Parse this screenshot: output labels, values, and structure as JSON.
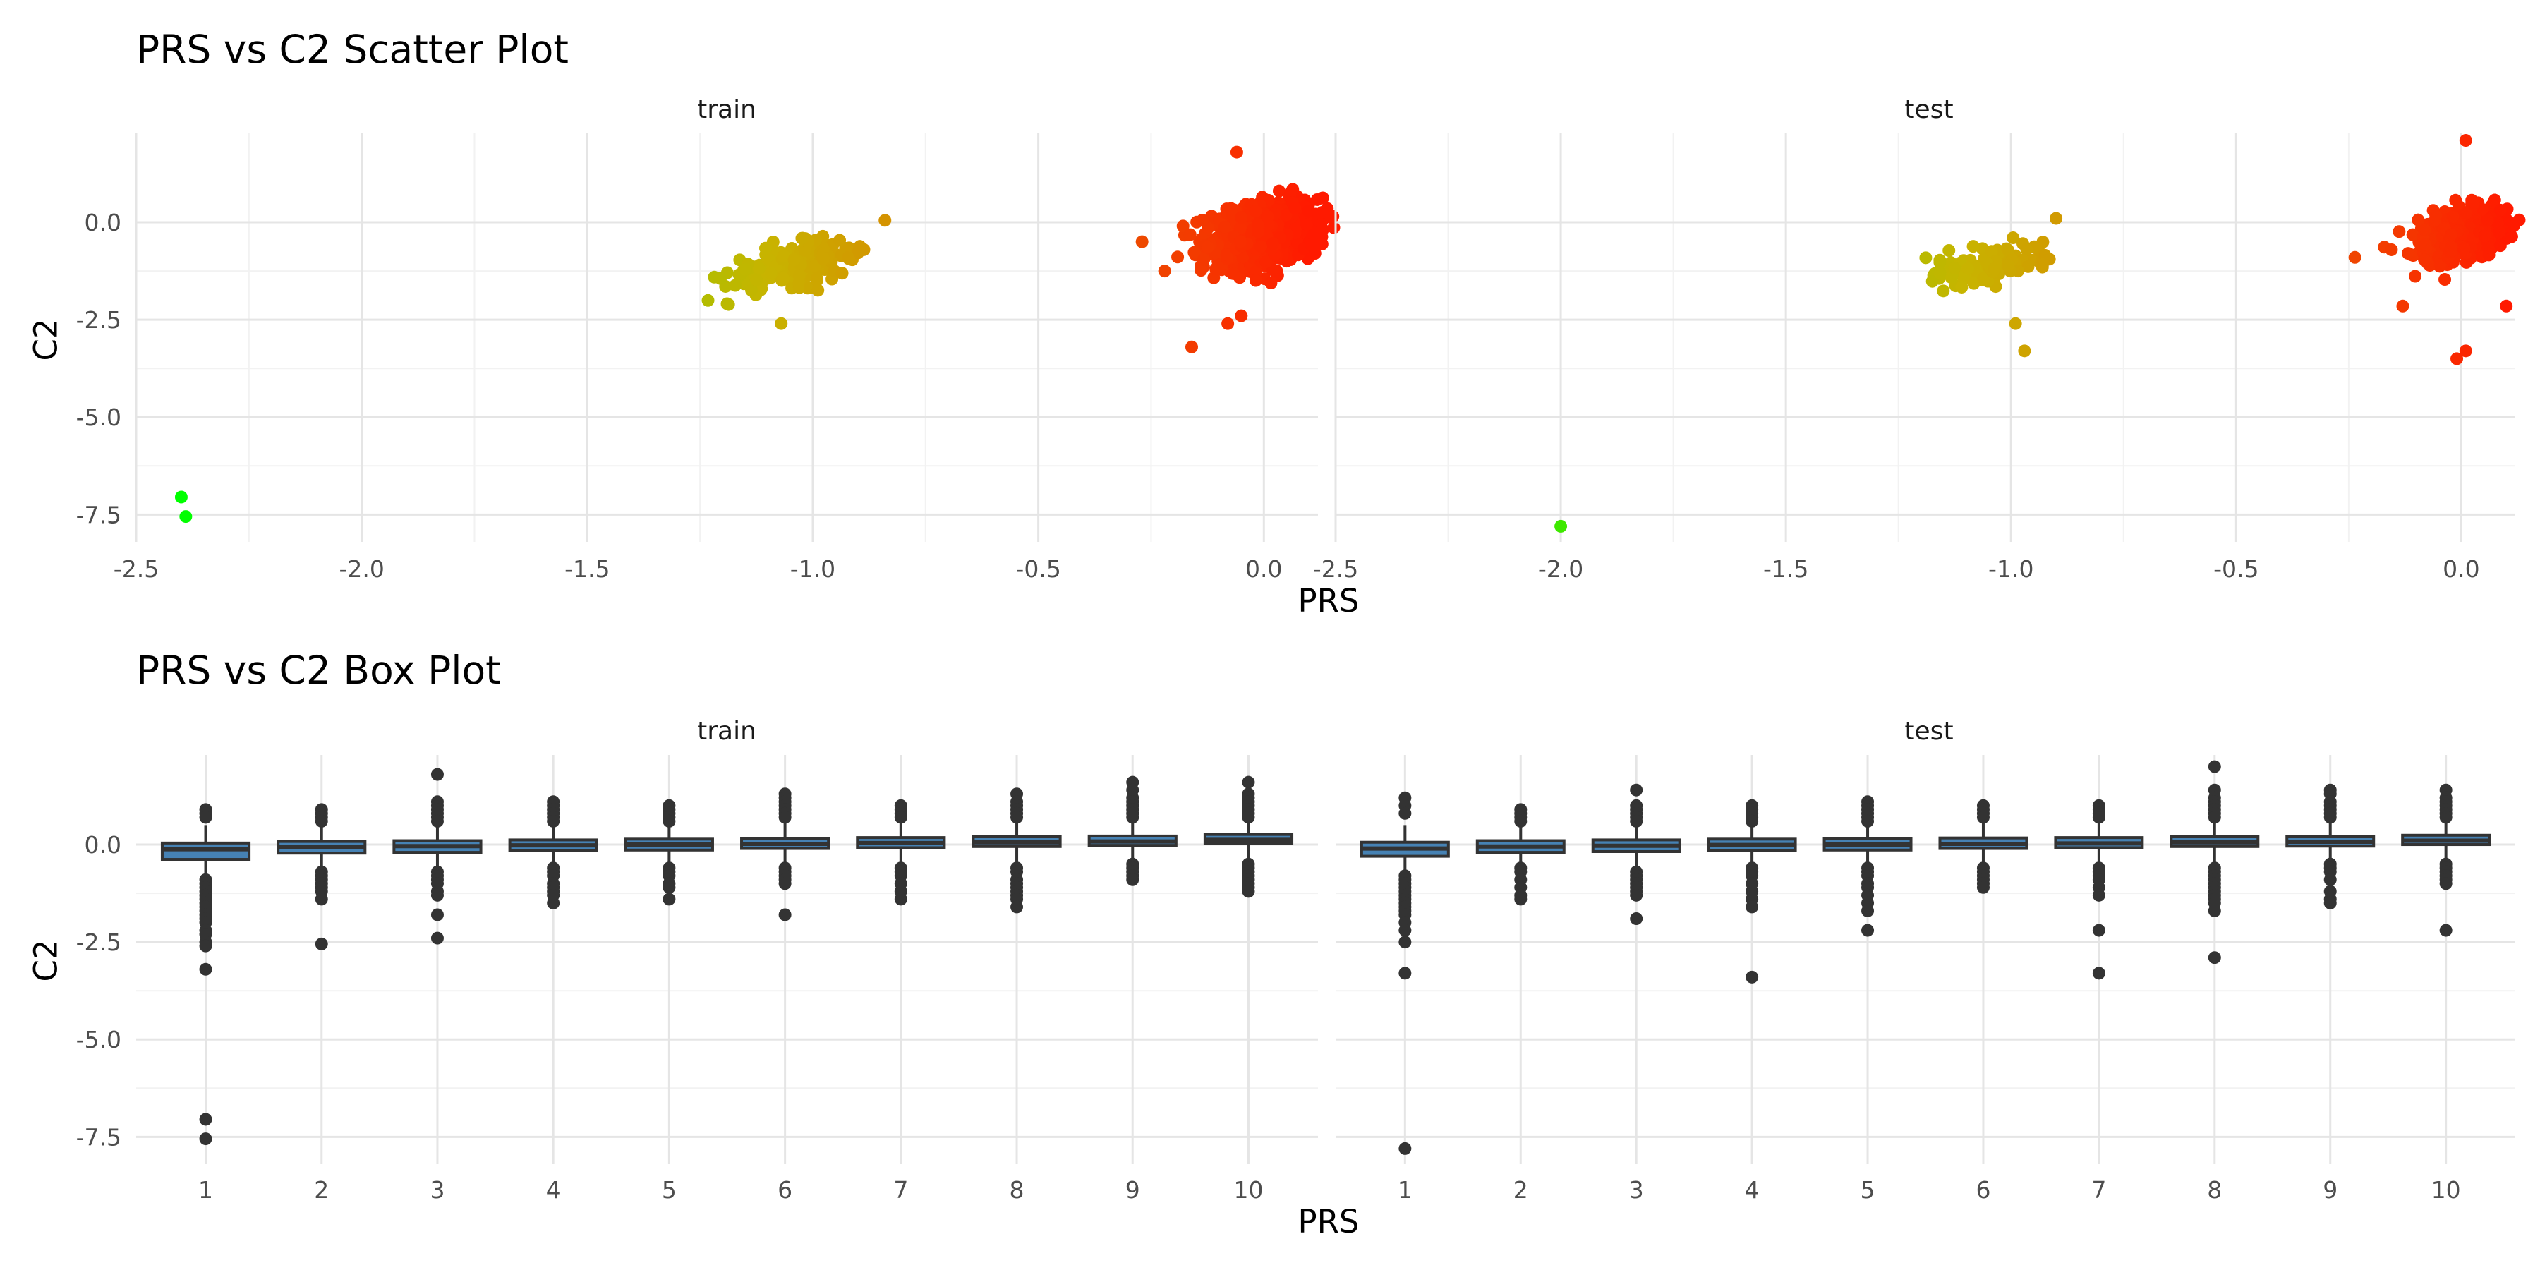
{
  "chart_data": [
    {
      "type": "scatter",
      "title": "PRS vs C2 Scatter Plot",
      "xlabel": "PRS",
      "ylabel": "C2",
      "facets": [
        "train",
        "test"
      ],
      "xlim": [
        -2.5,
        0.12
      ],
      "ylim": [
        -8.2,
        2.3
      ],
      "xticks": [
        -2.5,
        -2.0,
        -1.5,
        -1.0,
        -0.5,
        0.0
      ],
      "xtick_labels": [
        "-2.5",
        "-2.0",
        "-1.5",
        "-1.0",
        "-0.5",
        "0.0"
      ],
      "yticks": [
        0.0,
        -2.5,
        -5.0,
        -7.5
      ],
      "ytick_labels": [
        "0.0",
        "-2.5",
        "-5.0",
        "-7.5"
      ],
      "grid": true,
      "legend": "none",
      "color_scale": {
        "low": "#00ff00",
        "mid": "#c8b400",
        "high": "#ff1a00"
      },
      "clusters": [
        {
          "facet": "train",
          "center_x": -1.05,
          "center_y": -1.1,
          "spread_x": 0.07,
          "spread_y": 0.45,
          "count": 220
        },
        {
          "facet": "train",
          "center_x": 0.0,
          "center_y": -0.3,
          "spread_x": 0.06,
          "spread_y": 0.7,
          "count": 900
        },
        {
          "facet": "test",
          "center_x": -1.05,
          "center_y": -1.1,
          "spread_x": 0.06,
          "spread_y": 0.4,
          "count": 110
        },
        {
          "facet": "test",
          "center_x": 0.0,
          "center_y": -0.3,
          "spread_x": 0.05,
          "spread_y": 0.6,
          "count": 450
        }
      ],
      "points": [
        {
          "facet": "train",
          "x": -2.4,
          "y": -7.05
        },
        {
          "facet": "train",
          "x": -2.39,
          "y": -7.55
        },
        {
          "facet": "train",
          "x": -0.06,
          "y": 1.8
        },
        {
          "facet": "train",
          "x": -0.16,
          "y": -3.2
        },
        {
          "facet": "train",
          "x": -0.05,
          "y": -2.4
        },
        {
          "facet": "train",
          "x": -0.08,
          "y": -2.6
        },
        {
          "facet": "train",
          "x": -0.27,
          "y": -0.5
        },
        {
          "facet": "train",
          "x": -0.22,
          "y": -1.25
        },
        {
          "facet": "train",
          "x": -1.07,
          "y": -2.6
        },
        {
          "facet": "train",
          "x": -0.84,
          "y": 0.05
        },
        {
          "facet": "test",
          "x": -2.0,
          "y": -7.8
        },
        {
          "facet": "test",
          "x": 0.01,
          "y": 2.1
        },
        {
          "facet": "test",
          "x": -0.01,
          "y": -3.5
        },
        {
          "facet": "test",
          "x": 0.01,
          "y": -3.3
        },
        {
          "facet": "test",
          "x": 0.1,
          "y": -2.15
        },
        {
          "facet": "test",
          "x": -0.13,
          "y": -2.15
        },
        {
          "facet": "test",
          "x": -0.97,
          "y": -3.3
        },
        {
          "facet": "test",
          "x": -0.99,
          "y": -2.6
        },
        {
          "facet": "test",
          "x": -0.9,
          "y": 0.1
        }
      ]
    },
    {
      "type": "box",
      "title": "PRS vs C2 Box Plot",
      "xlabel": "PRS",
      "ylabel": "C2",
      "facets": [
        "train",
        "test"
      ],
      "categories": [
        "1",
        "2",
        "3",
        "4",
        "5",
        "6",
        "7",
        "8",
        "9",
        "10"
      ],
      "ylim": [
        -8.2,
        2.3
      ],
      "yticks": [
        0.0,
        -2.5,
        -5.0,
        -7.5
      ],
      "ytick_labels": [
        "0.0",
        "-2.5",
        "-5.0",
        "-7.5"
      ],
      "grid": true,
      "series": [
        {
          "facet": "train",
          "boxes": [
            {
              "q1": -0.38,
              "median": -0.12,
              "q3": 0.04,
              "whisker_low": -0.8,
              "whisker_high": 0.5,
              "outliers": [
                0.9,
                0.8,
                0.7,
                -0.9,
                -1.0,
                -1.1,
                -1.2,
                -1.3,
                -1.4,
                -1.5,
                -1.6,
                -1.7,
                -1.8,
                -1.9,
                -2.0,
                -2.2,
                -2.3,
                -2.5,
                -2.6,
                -3.2,
                -7.05,
                -7.55
              ]
            },
            {
              "q1": -0.22,
              "median": -0.06,
              "q3": 0.08,
              "whisker_low": -0.6,
              "whisker_high": 0.45,
              "outliers": [
                0.9,
                0.8,
                0.7,
                0.6,
                -0.7,
                -0.8,
                -0.9,
                -1.0,
                -1.1,
                -1.2,
                -1.4,
                -2.55
              ]
            },
            {
              "q1": -0.2,
              "median": -0.04,
              "q3": 0.1,
              "whisker_low": -0.6,
              "whisker_high": 0.5,
              "outliers": [
                1.8,
                1.1,
                1.0,
                0.9,
                0.8,
                0.7,
                0.6,
                -0.7,
                -0.8,
                -0.9,
                -1.0,
                -1.2,
                -1.3,
                -1.8,
                -2.4
              ]
            },
            {
              "q1": -0.16,
              "median": -0.02,
              "q3": 0.12,
              "whisker_low": -0.55,
              "whisker_high": 0.55,
              "outliers": [
                1.1,
                1.0,
                0.9,
                0.8,
                0.7,
                0.6,
                -0.6,
                -0.7,
                -0.8,
                -1.0,
                -1.1,
                -1.2,
                -1.3,
                -1.5
              ]
            },
            {
              "q1": -0.14,
              "median": 0.0,
              "q3": 0.14,
              "whisker_low": -0.55,
              "whisker_high": 0.55,
              "outliers": [
                1.0,
                0.9,
                0.8,
                0.7,
                0.6,
                -0.6,
                -0.7,
                -0.8,
                -1.0,
                -1.1,
                -1.4
              ]
            },
            {
              "q1": -0.1,
              "median": 0.02,
              "q3": 0.16,
              "whisker_low": -0.5,
              "whisker_high": 0.6,
              "outliers": [
                1.3,
                1.2,
                1.1,
                1.0,
                0.9,
                0.8,
                0.7,
                -0.6,
                -0.7,
                -0.8,
                -0.9,
                -1.0,
                -1.8
              ]
            },
            {
              "q1": -0.08,
              "median": 0.04,
              "q3": 0.18,
              "whisker_low": -0.5,
              "whisker_high": 0.6,
              "outliers": [
                1.0,
                0.9,
                0.8,
                0.7,
                -0.6,
                -0.7,
                -0.8,
                -1.0,
                -1.2,
                -1.4
              ]
            },
            {
              "q1": -0.05,
              "median": 0.06,
              "q3": 0.2,
              "whisker_low": -0.45,
              "whisker_high": 0.6,
              "outliers": [
                1.3,
                1.1,
                1.0,
                0.9,
                0.8,
                0.7,
                -0.6,
                -0.7,
                -0.9,
                -1.0,
                -1.1,
                -1.2,
                -1.3,
                -1.4,
                -1.6
              ]
            },
            {
              "q1": -0.02,
              "median": 0.08,
              "q3": 0.22,
              "whisker_low": -0.4,
              "whisker_high": 0.62,
              "outliers": [
                1.6,
                1.4,
                1.2,
                1.1,
                1.0,
                0.9,
                0.8,
                0.7,
                -0.5,
                -0.6,
                -0.7,
                -0.8,
                -0.9
              ]
            },
            {
              "q1": 0.02,
              "median": 0.12,
              "q3": 0.26,
              "whisker_low": -0.4,
              "whisker_high": 0.65,
              "outliers": [
                1.6,
                1.3,
                1.2,
                1.1,
                1.0,
                0.9,
                0.8,
                0.7,
                -0.5,
                -0.6,
                -0.7,
                -0.8,
                -0.9,
                -1.0,
                -1.1,
                -1.2
              ]
            }
          ]
        },
        {
          "facet": "test",
          "boxes": [
            {
              "q1": -0.3,
              "median": -0.1,
              "q3": 0.06,
              "whisker_low": -0.7,
              "whisker_high": 0.5,
              "outliers": [
                1.2,
                1.0,
                0.8,
                -0.8,
                -0.9,
                -1.0,
                -1.1,
                -1.2,
                -1.3,
                -1.4,
                -1.5,
                -1.6,
                -1.7,
                -1.8,
                -2.0,
                -2.2,
                -2.5,
                -3.3,
                -7.8
              ]
            },
            {
              "q1": -0.2,
              "median": -0.05,
              "q3": 0.1,
              "whisker_low": -0.6,
              "whisker_high": 0.5,
              "outliers": [
                0.9,
                0.8,
                0.7,
                0.6,
                -0.6,
                -0.7,
                -0.9,
                -1.1,
                -1.3,
                -1.4
              ]
            },
            {
              "q1": -0.18,
              "median": -0.03,
              "q3": 0.12,
              "whisker_low": -0.6,
              "whisker_high": 0.5,
              "outliers": [
                1.4,
                1.0,
                0.9,
                0.8,
                0.7,
                0.6,
                -0.7,
                -0.8,
                -0.9,
                -1.0,
                -1.1,
                -1.2,
                -1.3,
                -1.9
              ]
            },
            {
              "q1": -0.16,
              "median": -0.01,
              "q3": 0.14,
              "whisker_low": -0.55,
              "whisker_high": 0.55,
              "outliers": [
                1.0,
                0.9,
                0.8,
                0.7,
                0.6,
                -0.6,
                -0.7,
                -0.8,
                -1.0,
                -1.2,
                -1.4,
                -1.6,
                -3.4
              ]
            },
            {
              "q1": -0.14,
              "median": 0.0,
              "q3": 0.15,
              "whisker_low": -0.55,
              "whisker_high": 0.55,
              "outliers": [
                1.1,
                1.0,
                0.9,
                0.8,
                0.7,
                0.6,
                -0.6,
                -0.7,
                -0.8,
                -1.0,
                -1.1,
                -1.3,
                -1.5,
                -1.7,
                -2.2
              ]
            },
            {
              "q1": -0.1,
              "median": 0.02,
              "q3": 0.17,
              "whisker_low": -0.5,
              "whisker_high": 0.55,
              "outliers": [
                1.0,
                0.9,
                0.8,
                0.7,
                -0.6,
                -0.7,
                -0.8,
                -0.9,
                -1.0,
                -1.1
              ]
            },
            {
              "q1": -0.08,
              "median": 0.03,
              "q3": 0.18,
              "whisker_low": -0.5,
              "whisker_high": 0.55,
              "outliers": [
                1.0,
                0.9,
                0.8,
                0.7,
                -0.6,
                -0.7,
                -0.8,
                -0.9,
                -1.1,
                -1.3,
                -2.2,
                -3.3
              ]
            },
            {
              "q1": -0.05,
              "median": 0.06,
              "q3": 0.2,
              "whisker_low": -0.45,
              "whisker_high": 0.6,
              "outliers": [
                2.0,
                1.4,
                1.2,
                1.1,
                1.0,
                0.9,
                0.8,
                0.7,
                -0.6,
                -0.7,
                -0.8,
                -0.9,
                -1.0,
                -1.1,
                -1.2,
                -1.3,
                -1.4,
                -1.5,
                -1.7,
                -2.9
              ]
            },
            {
              "q1": -0.04,
              "median": 0.07,
              "q3": 0.2,
              "whisker_low": -0.45,
              "whisker_high": 0.6,
              "outliers": [
                1.4,
                1.3,
                1.1,
                1.0,
                0.9,
                0.8,
                0.7,
                -0.5,
                -0.6,
                -0.7,
                -0.9,
                -1.2,
                -1.4,
                -1.5
              ]
            },
            {
              "q1": 0.0,
              "median": 0.1,
              "q3": 0.24,
              "whisker_low": -0.4,
              "whisker_high": 0.62,
              "outliers": [
                1.4,
                1.2,
                1.1,
                1.0,
                0.9,
                0.8,
                0.7,
                -0.5,
                -0.6,
                -0.7,
                -0.8,
                -0.9,
                -1.0,
                -2.2
              ]
            }
          ]
        }
      ]
    }
  ]
}
